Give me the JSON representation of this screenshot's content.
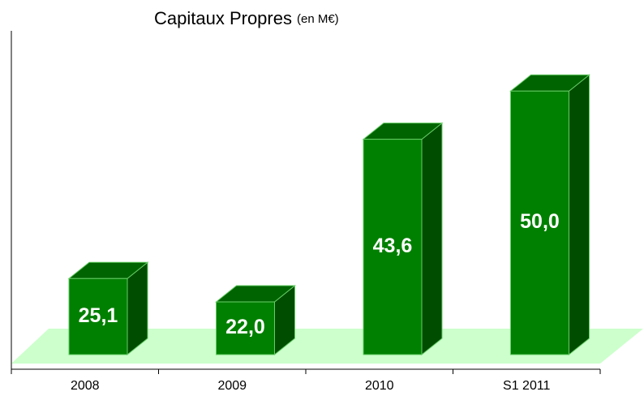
{
  "chart_data": {
    "type": "bar3d",
    "title": "Capitaux Propres",
    "subtitle": "(en M€)",
    "categories": [
      "2008",
      "2009",
      "2010",
      "S1 2011"
    ],
    "values": [
      25.1,
      22.0,
      43.6,
      50.0
    ],
    "value_labels": [
      "25,1",
      "22,0",
      "43,6",
      "50,0"
    ],
    "color": "#008000",
    "ylim": [
      15,
      58
    ]
  }
}
